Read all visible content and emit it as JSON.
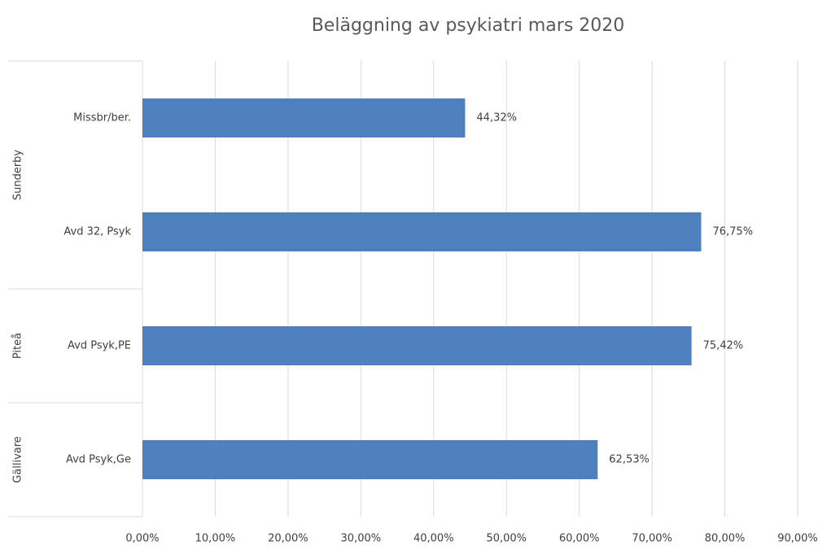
{
  "chart_data": {
    "type": "bar",
    "orientation": "horizontal",
    "title": "Beläggning av psykiatri mars 2020",
    "color": "#4e80bd",
    "groups": [
      {
        "name": "Sunderby",
        "categories": [
          "Missbr/ber.",
          "Avd 32, Psyk"
        ],
        "values": [
          44.32,
          76.75
        ],
        "value_labels": [
          "44,32%",
          "76,75%"
        ]
      },
      {
        "name": "Piteå",
        "categories": [
          "Avd Psyk,PE"
        ],
        "values": [
          75.42
        ],
        "value_labels": [
          "75,42%"
        ]
      },
      {
        "name": "Gällivare",
        "categories": [
          "Avd Psyk,Ge"
        ],
        "values": [
          62.53
        ],
        "value_labels": [
          "62,53%"
        ]
      }
    ],
    "xlim": [
      0,
      90
    ],
    "xticks": [
      {
        "value": 0,
        "label": "0,00%"
      },
      {
        "value": 10,
        "label": "10,00%"
      },
      {
        "value": 20,
        "label": "20,00%"
      },
      {
        "value": 30,
        "label": "30,00%"
      },
      {
        "value": 40,
        "label": "40,00%"
      },
      {
        "value": 50,
        "label": "50,00%"
      },
      {
        "value": 60,
        "label": "60,00%"
      },
      {
        "value": 70,
        "label": "70,00%"
      },
      {
        "value": 80,
        "label": "80,00%"
      },
      {
        "value": 90,
        "label": "90,00%"
      }
    ],
    "grid": true
  }
}
